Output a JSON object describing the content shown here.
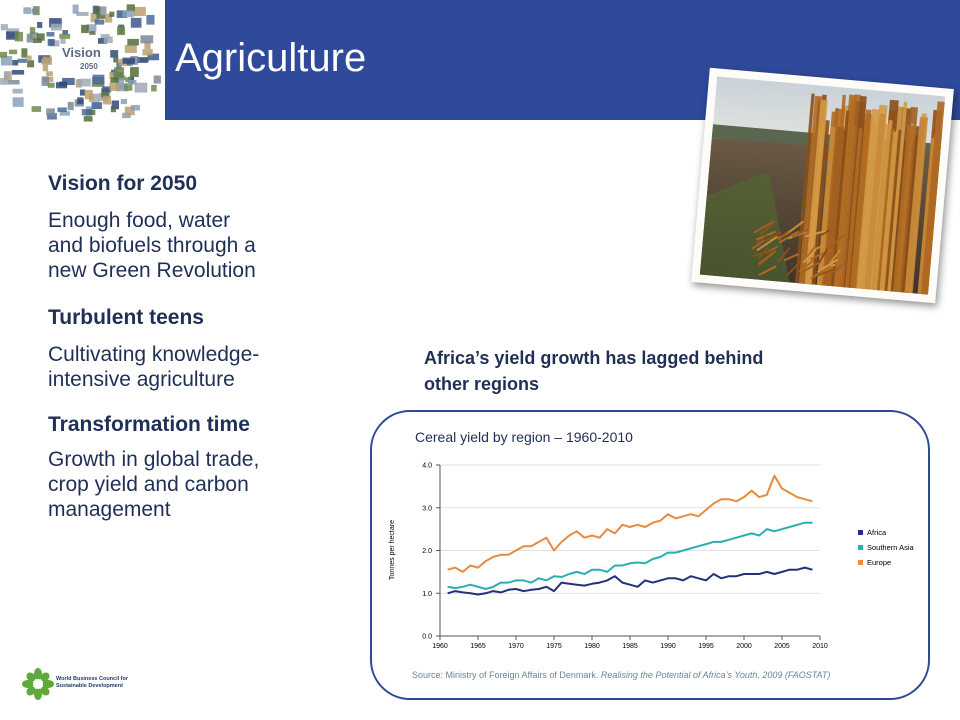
{
  "header": {
    "title": "Agriculture",
    "color": "#2f4a9a"
  },
  "logo": {
    "line1": "Vision",
    "line2": "2050"
  },
  "sections": [
    {
      "heading": "Vision for 2050",
      "body_lines": [
        "Enough food, water",
        "and biofuels through a",
        "new Green Revolution"
      ]
    },
    {
      "heading": "Turbulent teens",
      "body_lines": [
        "Cultivating knowledge-",
        "intensive agriculture"
      ]
    },
    {
      "heading": "Transformation time",
      "body_lines": [
        "Growth in global trade,",
        "crop yield and carbon",
        "management"
      ]
    }
  ],
  "chart_heading": {
    "line1": "Africa’s yield growth has lagged behind",
    "line2": "other regions"
  },
  "chart_data": {
    "type": "line",
    "title": "Cereal yield by region – 1960-2010",
    "xlabel": "",
    "ylabel": "Tonnes per hectare",
    "xlim": [
      1960,
      2010
    ],
    "ylim": [
      0,
      4
    ],
    "x_ticks": [
      "1960",
      "1965",
      "1970",
      "1975",
      "1980",
      "1985",
      "1990",
      "1995",
      "2000",
      "2005",
      "2010"
    ],
    "y_ticks": [
      "0.0",
      "1.0",
      "2.0",
      "3.0",
      "4.0"
    ],
    "grid": "horizontal",
    "legend": "right",
    "x": [
      1961,
      1962,
      1963,
      1964,
      1965,
      1966,
      1967,
      1968,
      1969,
      1970,
      1971,
      1972,
      1973,
      1974,
      1975,
      1976,
      1977,
      1978,
      1979,
      1980,
      1981,
      1982,
      1983,
      1984,
      1985,
      1986,
      1987,
      1988,
      1989,
      1990,
      1991,
      1992,
      1993,
      1994,
      1995,
      1996,
      1997,
      1998,
      1999,
      2000,
      2001,
      2002,
      2003,
      2004,
      2005,
      2006,
      2007,
      2008,
      2009
    ],
    "series": [
      {
        "name": "Africa",
        "color": "#26307a",
        "values": [
          1.0,
          1.05,
          1.02,
          1.0,
          0.97,
          1.0,
          1.05,
          1.02,
          1.08,
          1.1,
          1.05,
          1.08,
          1.1,
          1.15,
          1.05,
          1.25,
          1.22,
          1.2,
          1.18,
          1.22,
          1.25,
          1.3,
          1.4,
          1.25,
          1.2,
          1.15,
          1.3,
          1.25,
          1.3,
          1.35,
          1.35,
          1.3,
          1.4,
          1.35,
          1.3,
          1.45,
          1.35,
          1.4,
          1.4,
          1.45,
          1.45,
          1.45,
          1.5,
          1.45,
          1.5,
          1.55,
          1.55,
          1.6,
          1.55
        ]
      },
      {
        "name": "Southern Asia",
        "color": "#2aaeb4",
        "values": [
          1.15,
          1.12,
          1.15,
          1.2,
          1.15,
          1.1,
          1.15,
          1.25,
          1.25,
          1.3,
          1.3,
          1.25,
          1.35,
          1.3,
          1.4,
          1.38,
          1.45,
          1.5,
          1.45,
          1.55,
          1.55,
          1.5,
          1.65,
          1.65,
          1.7,
          1.72,
          1.7,
          1.8,
          1.85,
          1.95,
          1.95,
          2.0,
          2.05,
          2.1,
          2.15,
          2.2,
          2.2,
          2.25,
          2.3,
          2.35,
          2.4,
          2.35,
          2.5,
          2.45,
          2.5,
          2.55,
          2.6,
          2.65,
          2.65
        ]
      },
      {
        "name": "Europe",
        "color": "#e88b3e",
        "values": [
          1.55,
          1.6,
          1.5,
          1.65,
          1.6,
          1.75,
          1.85,
          1.9,
          1.9,
          2.0,
          2.1,
          2.1,
          2.2,
          2.3,
          2.0,
          2.2,
          2.35,
          2.45,
          2.3,
          2.35,
          2.3,
          2.5,
          2.4,
          2.6,
          2.55,
          2.6,
          2.55,
          2.65,
          2.7,
          2.85,
          2.75,
          2.8,
          2.85,
          2.8,
          2.95,
          3.1,
          3.2,
          3.2,
          3.15,
          3.25,
          3.4,
          3.25,
          3.3,
          3.75,
          3.45,
          3.35,
          3.25,
          3.2,
          3.15
        ]
      }
    ]
  },
  "source": {
    "prefix": "Source: Ministry of Foreign Affairs of Denmark. ",
    "italic": "Realising the Potential of Africa’s Youth, 2009 (FAOSTAT)"
  },
  "footer_logo": {
    "line1": "World Business Council for",
    "line2": "Sustainable Development"
  }
}
